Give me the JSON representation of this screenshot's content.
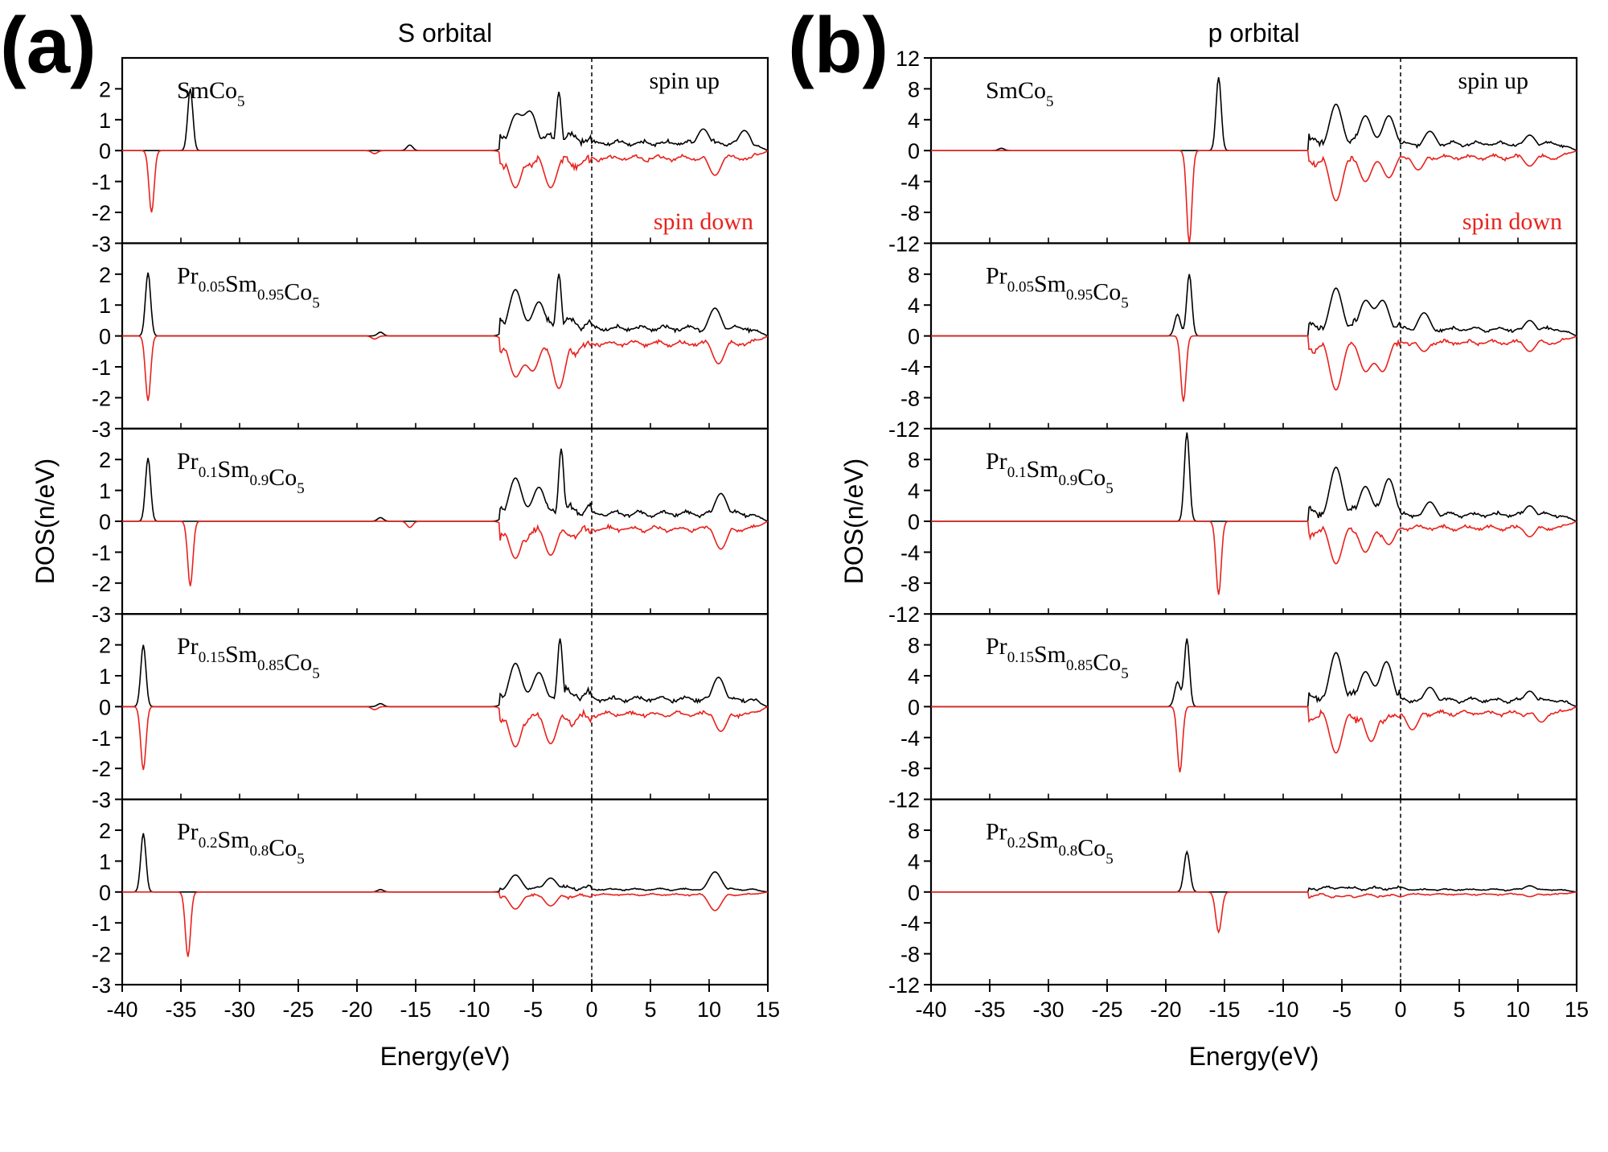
{
  "figure": {
    "panels": [
      {
        "letter": "(a)",
        "title": "S orbital",
        "xlabel": "Energy(eV)",
        "ylabel": "DOS(n/eV)",
        "x_ticks": [
          "-40",
          "-35",
          "-30",
          "-25",
          "-20",
          "-15",
          "-10",
          "-5",
          "0",
          "5",
          "10",
          "15"
        ],
        "y_ticks": [
          "2",
          "1",
          "0",
          "-1",
          "-2",
          "-3"
        ],
        "legend_up": "spin up",
        "legend_down": "spin down",
        "subplots": [
          {
            "label": [
              [
                "Sm",
                null
              ],
              [
                "Co",
                "5"
              ]
            ]
          },
          {
            "label": [
              [
                "Pr",
                "0.05"
              ],
              [
                "Sm",
                "0.95"
              ],
              [
                "Co",
                "5"
              ]
            ]
          },
          {
            "label": [
              [
                "Pr",
                "0.1"
              ],
              [
                "Sm",
                "0.9"
              ],
              [
                "Co",
                "5"
              ]
            ]
          },
          {
            "label": [
              [
                "Pr",
                "0.15"
              ],
              [
                "Sm",
                "0.85"
              ],
              [
                "Co",
                "5"
              ]
            ]
          },
          {
            "label": [
              [
                "Pr",
                "0.2"
              ],
              [
                "Sm",
                "0.8"
              ],
              [
                "Co",
                "5"
              ]
            ]
          }
        ]
      },
      {
        "letter": "(b)",
        "title": "p orbital",
        "xlabel": "Energy(eV)",
        "ylabel": "DOS(n/eV)",
        "x_ticks": [
          "-40",
          "-35",
          "-30",
          "-25",
          "-20",
          "-15",
          "-10",
          "-5",
          "0",
          "5",
          "10",
          "15"
        ],
        "y_ticks": [
          "8",
          "4",
          "0",
          "-4",
          "-8",
          "-12"
        ],
        "y_ticks_top": [
          "12",
          "8",
          "4",
          "0",
          "-4",
          "-8",
          "-12"
        ],
        "legend_up": "spin up",
        "legend_down": "spin down",
        "subplots": [
          {
            "label": [
              [
                "Sm",
                null
              ],
              [
                "Co",
                "5"
              ]
            ]
          },
          {
            "label": [
              [
                "Pr",
                "0.05"
              ],
              [
                "Sm",
                "0.95"
              ],
              [
                "Co",
                "5"
              ]
            ]
          },
          {
            "label": [
              [
                "Pr",
                "0.1"
              ],
              [
                "Sm",
                "0.9"
              ],
              [
                "Co",
                "5"
              ]
            ]
          },
          {
            "label": [
              [
                "Pr",
                "0.15"
              ],
              [
                "Sm",
                "0.85"
              ],
              [
                "Co",
                "5"
              ]
            ]
          },
          {
            "label": [
              [
                "Pr",
                "0.2"
              ],
              [
                "Sm",
                "0.8"
              ],
              [
                "Co",
                "5"
              ]
            ]
          }
        ]
      }
    ]
  },
  "colors": {
    "spin_up": "#000000",
    "spin_down": "#e8221d",
    "axis": "#000000",
    "fermi": "#000000"
  },
  "chart_data": [
    {
      "type": "line",
      "title": "S orbital",
      "xlabel": "Energy(eV)",
      "ylabel": "DOS(n/eV)",
      "xlim": [
        -40,
        15
      ],
      "ylim": [
        -3,
        3
      ],
      "fermi_level": 0,
      "legend": [
        "spin up",
        "spin down"
      ],
      "subplots": [
        {
          "compound": "SmCo5",
          "spin_up_peaks": [
            [
              -34.2,
              2.0
            ],
            [
              -15.5,
              0.18
            ],
            [
              -6.5,
              1.1
            ],
            [
              -5.2,
              1.2
            ],
            [
              -2.8,
              1.9
            ],
            [
              9.5,
              0.7
            ],
            [
              13,
              0.65
            ]
          ],
          "spin_down_peaks": [
            [
              -37.5,
              -2.0
            ],
            [
              -18.5,
              -0.1
            ],
            [
              -6.5,
              -1.2
            ],
            [
              -3.5,
              -1.2
            ],
            [
              10.5,
              -0.8
            ]
          ]
        },
        {
          "compound": "Pr0.05Sm0.95Co5",
          "spin_up_peaks": [
            [
              -37.8,
              2.05
            ],
            [
              -18,
              0.12
            ],
            [
              -6.5,
              1.5
            ],
            [
              -4.5,
              1.1
            ],
            [
              -2.8,
              2.0
            ],
            [
              10.5,
              0.9
            ]
          ],
          "spin_down_peaks": [
            [
              -37.8,
              -2.1
            ],
            [
              -18.5,
              -0.1
            ],
            [
              -6.5,
              -1.3
            ],
            [
              -5,
              -1.1
            ],
            [
              -2.8,
              -1.7
            ],
            [
              10.8,
              -0.9
            ]
          ]
        },
        {
          "compound": "Pr0.1Sm0.9Co5",
          "spin_up_peaks": [
            [
              -37.8,
              2.05
            ],
            [
              -18,
              0.12
            ],
            [
              -6.5,
              1.4
            ],
            [
              -4.5,
              1.1
            ],
            [
              -2.6,
              2.35
            ],
            [
              11,
              0.9
            ]
          ],
          "spin_down_peaks": [
            [
              -34.2,
              -2.1
            ],
            [
              -15.5,
              -0.2
            ],
            [
              -6.5,
              -1.2
            ],
            [
              -3.5,
              -1.1
            ],
            [
              11,
              -0.9
            ]
          ]
        },
        {
          "compound": "Pr0.15Sm0.85Co5",
          "spin_up_peaks": [
            [
              -38.2,
              2.0
            ],
            [
              -18,
              0.1
            ],
            [
              -6.5,
              1.4
            ],
            [
              -4.5,
              1.1
            ],
            [
              -2.7,
              2.2
            ],
            [
              10.8,
              0.95
            ]
          ],
          "spin_down_peaks": [
            [
              -38.2,
              -2.05
            ],
            [
              -18.5,
              -0.1
            ],
            [
              -6.5,
              -1.3
            ],
            [
              -3.5,
              -1.2
            ],
            [
              11,
              -0.8
            ]
          ]
        },
        {
          "compound": "Pr0.2Sm0.8Co5",
          "spin_up_peaks": [
            [
              -38.2,
              1.9
            ],
            [
              -18,
              0.08
            ],
            [
              -6.5,
              0.55
            ],
            [
              -3.5,
              0.45
            ],
            [
              10.5,
              0.65
            ]
          ],
          "spin_down_peaks": [
            [
              -34.4,
              -2.1
            ],
            [
              -6.5,
              -0.55
            ],
            [
              -3.5,
              -0.45
            ],
            [
              10.5,
              -0.6
            ]
          ]
        }
      ]
    },
    {
      "type": "line",
      "title": "p orbital",
      "xlabel": "Energy(eV)",
      "ylabel": "DOS(n/eV)",
      "xlim": [
        -40,
        15
      ],
      "ylim": [
        -12,
        12
      ],
      "fermi_level": 0,
      "legend": [
        "spin up",
        "spin down"
      ],
      "subplots": [
        {
          "compound": "SmCo5",
          "spin_up_peaks": [
            [
              -34,
              0.3
            ],
            [
              -15.5,
              9.5
            ],
            [
              -5.5,
              6.0
            ],
            [
              -3,
              4.5
            ],
            [
              -1,
              4.5
            ],
            [
              2.5,
              2.5
            ],
            [
              11,
              2.0
            ]
          ],
          "spin_down_peaks": [
            [
              -18,
              -12
            ],
            [
              -5.5,
              -6.5
            ],
            [
              -3,
              -4.0
            ],
            [
              -1,
              -3.5
            ],
            [
              1.5,
              -2.5
            ],
            [
              11,
              -2.0
            ]
          ]
        },
        {
          "compound": "Pr0.05Sm0.95Co5",
          "spin_up_peaks": [
            [
              -19,
              2.8
            ],
            [
              -18,
              8.0
            ],
            [
              -5.5,
              6.2
            ],
            [
              -3,
              4.5
            ],
            [
              -1.5,
              4.5
            ],
            [
              2,
              3.0
            ],
            [
              11,
              2.0
            ]
          ],
          "spin_down_peaks": [
            [
              -18.5,
              -8.5
            ],
            [
              -5.5,
              -7.0
            ],
            [
              -3,
              -4.5
            ],
            [
              -1.5,
              -4.5
            ],
            [
              2,
              -2.0
            ],
            [
              11,
              -2.0
            ]
          ]
        },
        {
          "compound": "Pr0.1Sm0.9Co5",
          "spin_up_peaks": [
            [
              -18.2,
              11.5
            ],
            [
              -5.5,
              7.0
            ],
            [
              -3,
              4.5
            ],
            [
              -1,
              5.5
            ],
            [
              2.5,
              2.5
            ],
            [
              11,
              2.0
            ]
          ],
          "spin_down_peaks": [
            [
              -15.5,
              -9.5
            ],
            [
              -5.5,
              -5.5
            ],
            [
              -3,
              -4.0
            ],
            [
              -1,
              -3.0
            ],
            [
              11,
              -2.0
            ]
          ]
        },
        {
          "compound": "Pr0.15Sm0.85Co5",
          "spin_up_peaks": [
            [
              -19,
              3.2
            ],
            [
              -18.2,
              8.8
            ],
            [
              -5.5,
              7.0
            ],
            [
              -3,
              4.5
            ],
            [
              -1.2,
              5.8
            ],
            [
              2.5,
              2.5
            ],
            [
              11,
              2.0
            ]
          ],
          "spin_down_peaks": [
            [
              -18.8,
              -8.5
            ],
            [
              -5.5,
              -6.0
            ],
            [
              -2.5,
              -4.5
            ],
            [
              1,
              -3.0
            ],
            [
              12,
              -2.0
            ]
          ]
        },
        {
          "compound": "Pr0.2Sm0.8Co5",
          "spin_up_peaks": [
            [
              -18.2,
              5.2
            ],
            [
              -5,
              0.6
            ],
            [
              0,
              0.6
            ],
            [
              11,
              0.8
            ]
          ],
          "spin_down_peaks": [
            [
              -15.5,
              -5.2
            ],
            [
              -5,
              -0.6
            ],
            [
              0,
              -0.6
            ],
            [
              11,
              -0.6
            ]
          ]
        }
      ]
    }
  ]
}
